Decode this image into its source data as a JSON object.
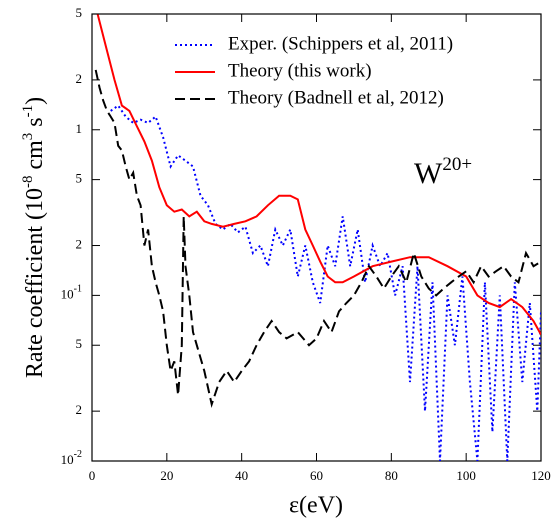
{
  "chart_data": {
    "type": "line",
    "x_label": "ε(eV)",
    "y_label": [
      {
        "text": "Rate coefficient (10",
        "sup": "-8"
      },
      {
        "text": " cm",
        "sup": "3"
      },
      {
        "text": " s",
        "sup": "-1"
      },
      {
        "text": ")"
      }
    ],
    "annotation": {
      "text": "W",
      "sup": "20+",
      "color": "#ff0000"
    },
    "xlim": [
      0,
      120
    ],
    "xticks": [
      0,
      20,
      40,
      60,
      80,
      100,
      120
    ],
    "ylim": [
      0.01,
      5
    ],
    "log_y": true,
    "yticks": [
      {
        "value": 0.01,
        "label": "10",
        "sup": "-2"
      },
      {
        "value": 0.02,
        "label": "2"
      },
      {
        "value": 0.05,
        "label": "5"
      },
      {
        "value": 0.1,
        "label": "10",
        "sup": "-1"
      },
      {
        "value": 0.2,
        "label": "2"
      },
      {
        "value": 0.5,
        "label": "5"
      },
      1,
      2,
      5
    ],
    "legend": "top-right",
    "series": [
      {
        "name": "Exper. (Schippers et al, 2011)",
        "color": "#0000ff",
        "style": "dotted",
        "x": [
          5,
          7,
          9,
          11,
          13,
          15,
          17,
          19,
          21,
          23,
          25,
          27,
          29,
          31,
          33,
          35,
          37,
          39,
          41,
          43,
          45,
          47,
          49,
          51,
          53,
          55,
          57,
          59,
          61,
          63,
          65,
          67,
          69,
          71,
          73,
          75,
          77,
          79,
          81,
          83,
          85,
          87,
          89,
          91,
          93,
          95,
          97,
          99,
          101,
          103,
          105,
          107,
          109,
          111,
          113,
          115,
          117,
          119,
          120
        ],
        "values": [
          1.3,
          1.4,
          1.2,
          1.1,
          1.15,
          1.1,
          1.2,
          0.9,
          0.6,
          0.7,
          0.65,
          0.6,
          0.4,
          0.35,
          0.27,
          0.25,
          0.27,
          0.24,
          0.26,
          0.18,
          0.2,
          0.15,
          0.25,
          0.2,
          0.25,
          0.13,
          0.2,
          0.12,
          0.09,
          0.2,
          0.15,
          0.3,
          0.15,
          0.25,
          0.12,
          0.2,
          0.15,
          0.18,
          0.1,
          0.15,
          0.03,
          0.15,
          0.02,
          0.12,
          0.01,
          0.1,
          0.05,
          0.13,
          0.03,
          0.01,
          0.12,
          0.015,
          0.1,
          0.01,
          0.12,
          0.03,
          0.09,
          0.02,
          0.08
        ]
      },
      {
        "name": "Theory (this work)",
        "color": "#ff0000",
        "style": "solid",
        "x": [
          1.5,
          4,
          6,
          8,
          10,
          12,
          14,
          16,
          18,
          20,
          22,
          24,
          26,
          28,
          30,
          32,
          35,
          38,
          41,
          44,
          47,
          50,
          53,
          55,
          57,
          59,
          61,
          63,
          65,
          67,
          70,
          75,
          80,
          85,
          90,
          95,
          100,
          103,
          106,
          109,
          112,
          115,
          118,
          120
        ],
        "values": [
          5,
          3,
          2,
          1.4,
          1.3,
          1.05,
          0.85,
          0.65,
          0.45,
          0.35,
          0.32,
          0.33,
          0.3,
          0.32,
          0.28,
          0.27,
          0.26,
          0.27,
          0.28,
          0.3,
          0.35,
          0.4,
          0.4,
          0.38,
          0.25,
          0.2,
          0.16,
          0.13,
          0.12,
          0.12,
          0.13,
          0.15,
          0.16,
          0.17,
          0.17,
          0.15,
          0.13,
          0.1,
          0.09,
          0.085,
          0.095,
          0.085,
          0.07,
          0.058
        ]
      },
      {
        "name": "Theory (Badnell et al, 2012)",
        "color": "#000000",
        "style": "dashed",
        "x": [
          1,
          2,
          3,
          4,
          5,
          6,
          7,
          8,
          9,
          10,
          11,
          12,
          13,
          14,
          15,
          16,
          17,
          18,
          19,
          20,
          21,
          22,
          23,
          24,
          24.5,
          25,
          26,
          27,
          28,
          30,
          32,
          34,
          36,
          38,
          40,
          42,
          44,
          46,
          48,
          50,
          52,
          55,
          58,
          60,
          62,
          64,
          66,
          68,
          70,
          72,
          74,
          76,
          78,
          80,
          82,
          84,
          86,
          88,
          90,
          92,
          94,
          96,
          98,
          100,
          102,
          104,
          106,
          108,
          110,
          112,
          114,
          116,
          118,
          120
        ],
        "values": [
          2.3,
          1.8,
          1.5,
          1.3,
          1.2,
          1.1,
          0.8,
          0.75,
          0.6,
          0.5,
          0.55,
          0.4,
          0.35,
          0.2,
          0.25,
          0.15,
          0.12,
          0.1,
          0.08,
          0.05,
          0.035,
          0.04,
          0.025,
          0.05,
          0.3,
          0.15,
          0.1,
          0.06,
          0.05,
          0.035,
          0.022,
          0.03,
          0.035,
          0.03,
          0.035,
          0.04,
          0.05,
          0.06,
          0.07,
          0.06,
          0.055,
          0.06,
          0.05,
          0.055,
          0.07,
          0.06,
          0.08,
          0.09,
          0.1,
          0.12,
          0.15,
          0.13,
          0.11,
          0.13,
          0.15,
          0.12,
          0.18,
          0.13,
          0.11,
          0.1,
          0.11,
          0.12,
          0.13,
          0.14,
          0.12,
          0.15,
          0.13,
          0.14,
          0.15,
          0.13,
          0.12,
          0.18,
          0.15,
          0.16
        ]
      }
    ]
  }
}
